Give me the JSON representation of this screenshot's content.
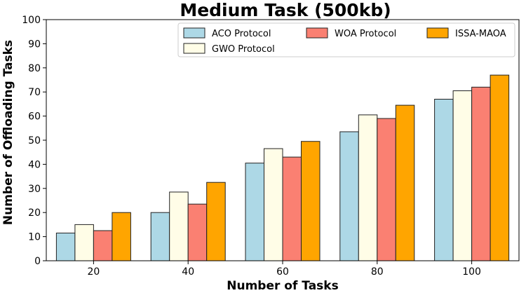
{
  "chart_data": {
    "type": "bar",
    "title": "Medium Task (500kb)",
    "xlabel": "Number of Tasks",
    "ylabel": "Number of Offloading Tasks",
    "categories": [
      "20",
      "40",
      "60",
      "80",
      "100"
    ],
    "ylim": [
      0,
      100
    ],
    "yticks": [
      0,
      10,
      20,
      30,
      40,
      50,
      60,
      70,
      80,
      90,
      100
    ],
    "grid": false,
    "legend_position": "top-right",
    "series": [
      {
        "name": "ACO Protocol",
        "color": "#add8e6",
        "values": [
          11.5,
          20,
          40.5,
          53.5,
          67
        ]
      },
      {
        "name": "GWO Protocol",
        "color": "#fffde7",
        "values": [
          15,
          28.5,
          46.5,
          60.5,
          70.5
        ]
      },
      {
        "name": "WOA Protocol",
        "color": "#fa8072",
        "values": [
          12.5,
          23.5,
          43,
          59,
          72
        ]
      },
      {
        "name": "ISSA-MAOA",
        "color": "#ffa500",
        "values": [
          20,
          32.5,
          49.5,
          64.5,
          77
        ]
      }
    ]
  }
}
